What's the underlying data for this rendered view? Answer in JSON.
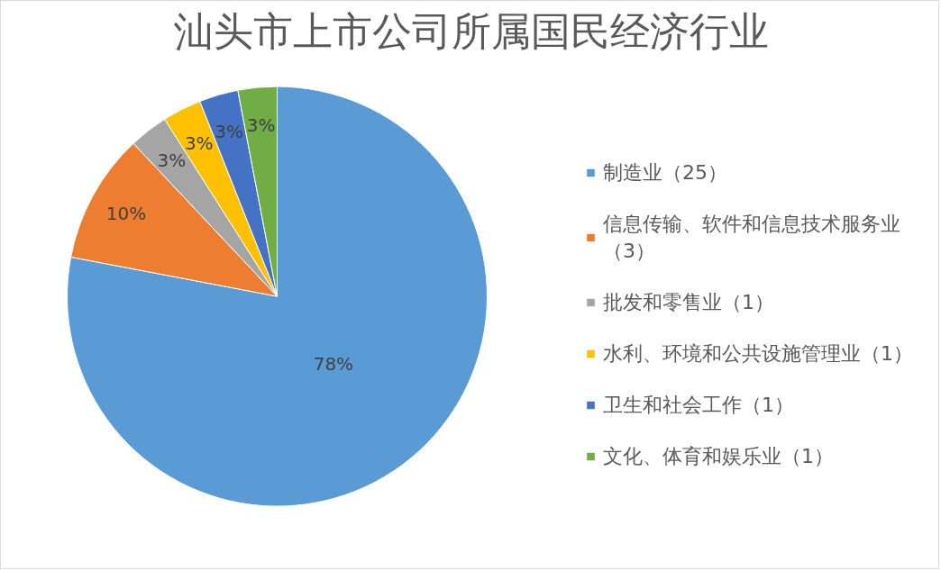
{
  "chart_data": {
    "type": "pie",
    "title": "汕头市上市公司所属国民经济行业",
    "categories": [
      "制造业（25）",
      "信息传输、软件和信息技术服务业（3）",
      "批发和零售业（1）",
      "水利、环境和公共设施管理业（1）",
      "卫生和社会工作（1）",
      "文化、体育和娱乐业（1）"
    ],
    "values": [
      78,
      10,
      3,
      3,
      3,
      3
    ],
    "colors": [
      "#5b9bd5",
      "#ed7d31",
      "#a5a5a5",
      "#ffc000",
      "#4472c4",
      "#70ad47"
    ],
    "value_labels": [
      "78%",
      "10%",
      "3%",
      "3%",
      "3%",
      "3%"
    ],
    "legend": "right"
  }
}
